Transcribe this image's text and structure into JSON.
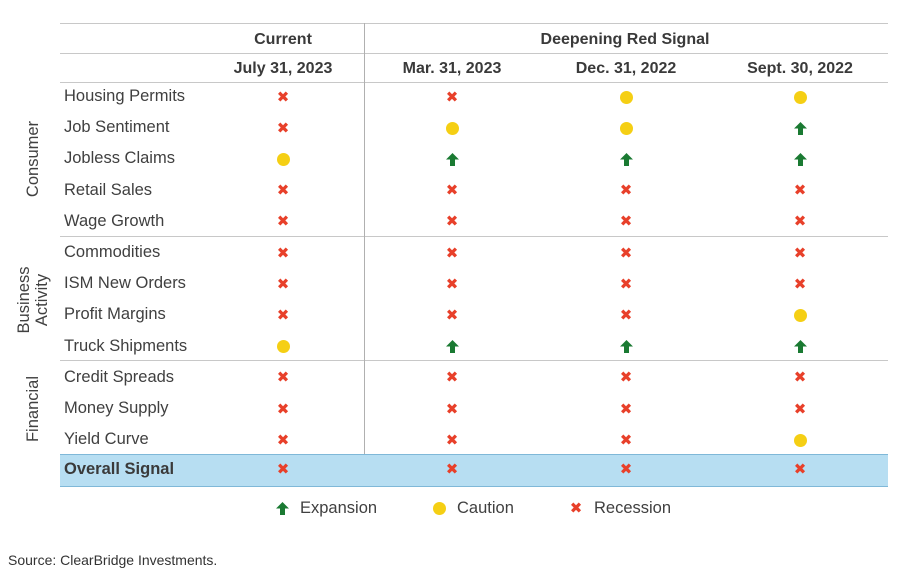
{
  "chart_data": {
    "type": "table",
    "headers": {
      "current_group": "Current",
      "history_group": "Deepening Red Signal",
      "columns": [
        "July 31, 2023",
        "Mar. 31, 2023",
        "Dec. 31, 2022",
        "Sept. 30, 2022"
      ]
    },
    "groups": [
      {
        "label": "Consumer",
        "start": 0,
        "end": 4
      },
      {
        "label": "Business Activity",
        "start": 5,
        "end": 8
      },
      {
        "label": "Financial",
        "start": 9,
        "end": 11
      }
    ],
    "rows": [
      {
        "label": "Housing Permits",
        "values": [
          "recession",
          "recession",
          "caution",
          "caution"
        ]
      },
      {
        "label": "Job Sentiment",
        "values": [
          "recession",
          "caution",
          "caution",
          "expansion"
        ]
      },
      {
        "label": "Jobless Claims",
        "values": [
          "caution",
          "expansion",
          "expansion",
          "expansion"
        ]
      },
      {
        "label": "Retail Sales",
        "values": [
          "recession",
          "recession",
          "recession",
          "recession"
        ]
      },
      {
        "label": "Wage Growth",
        "values": [
          "recession",
          "recession",
          "recession",
          "recession"
        ]
      },
      {
        "label": "Commodities",
        "values": [
          "recession",
          "recession",
          "recession",
          "recession"
        ]
      },
      {
        "label": "ISM New Orders",
        "values": [
          "recession",
          "recession",
          "recession",
          "recession"
        ]
      },
      {
        "label": "Profit Margins",
        "values": [
          "recession",
          "recession",
          "recession",
          "caution"
        ]
      },
      {
        "label": "Truck Shipments",
        "values": [
          "caution",
          "expansion",
          "expansion",
          "expansion"
        ]
      },
      {
        "label": "Credit Spreads",
        "values": [
          "recession",
          "recession",
          "recession",
          "recession"
        ]
      },
      {
        "label": "Money Supply",
        "values": [
          "recession",
          "recession",
          "recession",
          "recession"
        ]
      },
      {
        "label": "Yield Curve",
        "values": [
          "recession",
          "recession",
          "recession",
          "caution"
        ]
      }
    ],
    "overall": {
      "label": "Overall Signal",
      "values": [
        "recession",
        "recession",
        "recession",
        "recession"
      ]
    },
    "legend": [
      {
        "key": "expansion",
        "label": "Expansion"
      },
      {
        "key": "caution",
        "label": "Caution"
      },
      {
        "key": "recession",
        "label": "Recession"
      }
    ],
    "colors": {
      "expansion": "#1a7a32",
      "caution": "#f5cf14",
      "recession": "#e8402a",
      "highlight": "#b7def2"
    }
  },
  "source": "Source: ClearBridge Investments."
}
